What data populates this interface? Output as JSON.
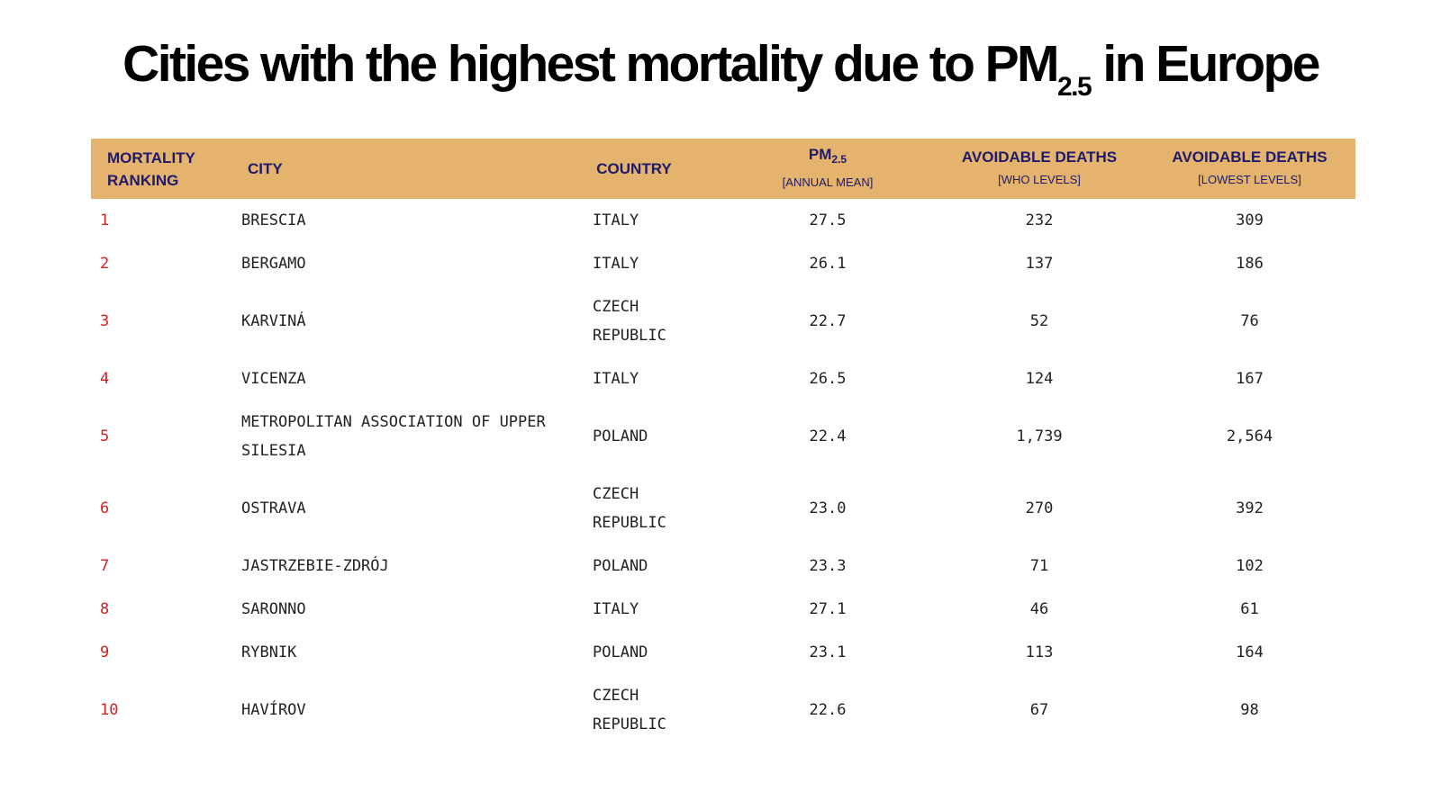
{
  "header": {
    "title": {
      "pre": "Cities with the highest mortality due to PM",
      "sub": "2.5",
      "post": " in Europe"
    }
  },
  "table": {
    "columns": [
      {
        "main": "MORTALITY RANKING"
      },
      {
        "main": "CITY"
      },
      {
        "main": "COUNTRY"
      },
      {
        "main": "PM",
        "main_sub": "2.5",
        "sub": "[ANNUAL MEAN]"
      },
      {
        "main": "AVOIDABLE DEATHS",
        "sub": "[WHO LEVELS]"
      },
      {
        "main": "AVOIDABLE DEATHS",
        "sub": "[LOWEST LEVELS]"
      }
    ],
    "rows": [
      [
        "1",
        "BRESCIA",
        "ITALY",
        "27.5",
        "232",
        "309"
      ],
      [
        "2",
        "BERGAMO",
        "ITALY",
        "26.1",
        "137",
        "186"
      ],
      [
        "3",
        "KARVINÁ",
        "CZECH REPUBLIC",
        "22.7",
        "52",
        "76"
      ],
      [
        "4",
        "VICENZA",
        "ITALY",
        "26.5",
        "124",
        "167"
      ],
      [
        "5",
        "METROPOLITAN ASSOCIATION OF UPPER SILESIA",
        "POLAND",
        "22.4",
        "1,739",
        "2,564"
      ],
      [
        "6",
        "OSTRAVA",
        "CZECH REPUBLIC",
        "23.0",
        "270",
        "392"
      ],
      [
        "7",
        "JASTRZEBIE-ZDRÓJ",
        "POLAND",
        "23.3",
        "71",
        "102"
      ],
      [
        "8",
        "SARONNO",
        "ITALY",
        "27.1",
        "46",
        "61"
      ],
      [
        "9",
        "RYBNIK",
        "POLAND",
        "23.1",
        "113",
        "164"
      ],
      [
        "10",
        "HAVÍROV",
        "CZECH REPUBLIC",
        "22.6",
        "67",
        "98"
      ]
    ]
  }
}
